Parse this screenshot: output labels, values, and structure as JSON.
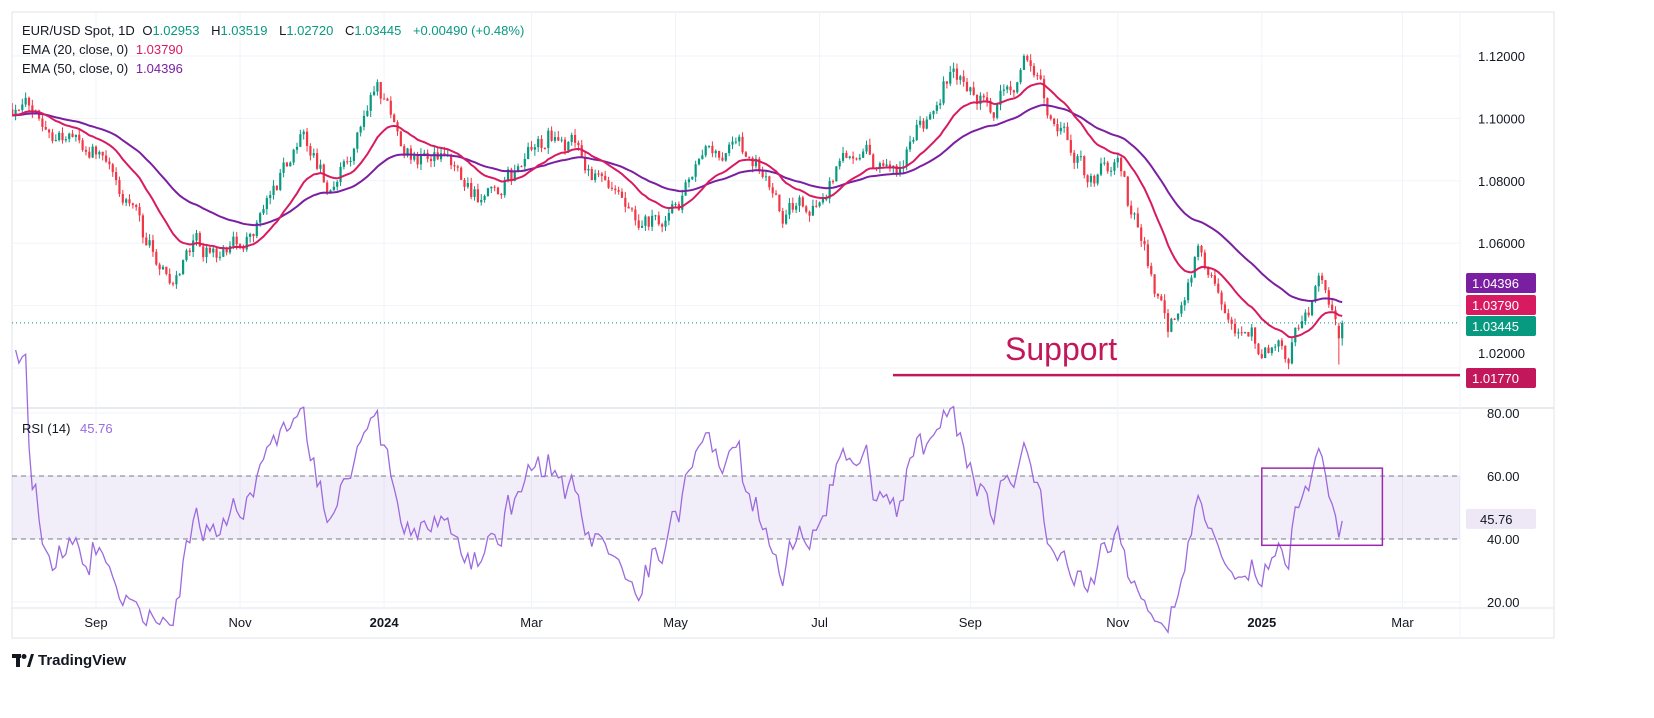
{
  "legend": {
    "symbol": "EUR/USD Spot, 1D",
    "open_label": "O",
    "open": "1.02953",
    "high_label": "H",
    "high": "1.03519",
    "low_label": "L",
    "low": "1.02720",
    "close_label": "C",
    "close": "1.03445",
    "change": "+0.00490 (+0.48%)",
    "ema20_label": "EMA (20, close, 0)",
    "ema20_value": "1.03790",
    "ema50_label": "EMA (50, close, 0)",
    "ema50_value": "1.04396"
  },
  "rsi_legend": {
    "label": "RSI (14)",
    "value": "45.76"
  },
  "annotation": {
    "support_text": "Support"
  },
  "branding": {
    "logo_text": "TradingView"
  },
  "colors": {
    "up": "#089981",
    "down": "#f23645",
    "ema20": "#d81b60",
    "ema50": "#7b1fa2",
    "rsi": "#9c6ade",
    "support": "#c2185b",
    "last_price": "#089981"
  },
  "chart_data": [
    {
      "type": "candlestick",
      "title": "EUR/USD Spot, 1D",
      "timeframe": "1D",
      "approx_close_path": [
        {
          "date": "2023-07-28",
          "close": 1.1043
        },
        {
          "date": "2023-08-10",
          "close": 1.1
        },
        {
          "date": "2023-09-01",
          "close": 1.09
        },
        {
          "date": "2023-09-15",
          "close": 1.07
        },
        {
          "date": "2023-10-03",
          "close": 1.048
        },
        {
          "date": "2023-10-12",
          "close": 1.062
        },
        {
          "date": "2023-10-20",
          "close": 1.058
        },
        {
          "date": "2023-11-01",
          "close": 1.058
        },
        {
          "date": "2023-11-10",
          "close": 1.07
        },
        {
          "date": "2023-11-28",
          "close": 1.096
        },
        {
          "date": "2023-12-08",
          "close": 1.076
        },
        {
          "date": "2023-12-28",
          "close": 1.11
        },
        {
          "date": "2024-01-05",
          "close": 1.094
        },
        {
          "date": "2024-01-25",
          "close": 1.084
        },
        {
          "date": "2024-02-14",
          "close": 1.073
        },
        {
          "date": "2024-03-08",
          "close": 1.094
        },
        {
          "date": "2024-03-20",
          "close": 1.09
        },
        {
          "date": "2024-04-16",
          "close": 1.062
        },
        {
          "date": "2024-05-01",
          "close": 1.07
        },
        {
          "date": "2024-05-15",
          "close": 1.088
        },
        {
          "date": "2024-06-03",
          "close": 1.089
        },
        {
          "date": "2024-06-14",
          "close": 1.07
        },
        {
          "date": "2024-07-01",
          "close": 1.074
        },
        {
          "date": "2024-07-17",
          "close": 1.094
        },
        {
          "date": "2024-08-01",
          "close": 1.079
        },
        {
          "date": "2024-08-23",
          "close": 1.117
        },
        {
          "date": "2024-09-04",
          "close": 1.106
        },
        {
          "date": "2024-09-11",
          "close": 1.102
        },
        {
          "date": "2024-09-25",
          "close": 1.119
        },
        {
          "date": "2024-10-03",
          "close": 1.104
        },
        {
          "date": "2024-10-22",
          "close": 1.08
        },
        {
          "date": "2024-11-01",
          "close": 1.088
        },
        {
          "date": "2024-11-06",
          "close": 1.073
        },
        {
          "date": "2024-11-22",
          "close": 1.035
        },
        {
          "date": "2024-12-06",
          "close": 1.058
        },
        {
          "date": "2024-12-20",
          "close": 1.038
        },
        {
          "date": "2025-01-02",
          "close": 1.026
        },
        {
          "date": "2025-01-13",
          "close": 1.023
        },
        {
          "date": "2025-01-27",
          "close": 1.05
        },
        {
          "date": "2025-02-03",
          "close": 1.0295
        },
        {
          "date": "2025-02-04",
          "close": 1.03445
        }
      ],
      "last_candle": {
        "open": 1.02953,
        "high": 1.03519,
        "low": 1.0272,
        "close": 1.03445
      },
      "indicators": [
        {
          "name": "EMA (20, close, 0)",
          "last": 1.0379
        },
        {
          "name": "EMA (50, close, 0)",
          "last": 1.04396
        }
      ],
      "support_level": 1.0177,
      "ylim": [
        1.005,
        1.127
      ],
      "y_ticks": [
        "1.12000",
        "1.10000",
        "1.08000",
        "1.06000",
        "1.02000"
      ],
      "y_tick_values": [
        1.12,
        1.1,
        1.08,
        1.06,
        1.02
      ],
      "price_labels": [
        "1.04396",
        "1.03790",
        "1.03445",
        "1.01770"
      ],
      "x_ticks": [
        {
          "label": "Sep",
          "date": "2023-09-01"
        },
        {
          "label": "Nov",
          "date": "2023-11-01"
        },
        {
          "label": "2024",
          "date": "2024-01-01",
          "bold": true
        },
        {
          "label": "Mar",
          "date": "2024-03-01"
        },
        {
          "label": "May",
          "date": "2024-05-01"
        },
        {
          "label": "Jul",
          "date": "2024-07-01"
        },
        {
          "label": "Sep",
          "date": "2024-09-01"
        },
        {
          "label": "Nov",
          "date": "2024-11-01"
        },
        {
          "label": "2025",
          "date": "2025-01-01",
          "bold": true
        },
        {
          "label": "Mar",
          "date": "2025-03-01"
        }
      ],
      "grid": true
    },
    {
      "type": "line",
      "title": "RSI (14)",
      "last": 45.76,
      "ylim": [
        15,
        85
      ],
      "y_ticks": [
        "80.00",
        "60.00",
        "40.00",
        "20.00"
      ],
      "y_tick_values": [
        80,
        60,
        40,
        20
      ],
      "bands": [
        40,
        60
      ],
      "highlight_box": {
        "from": "2025-01-01",
        "to": "2025-02-20",
        "rsi_low": 38,
        "rsi_high": 62.5
      }
    }
  ]
}
